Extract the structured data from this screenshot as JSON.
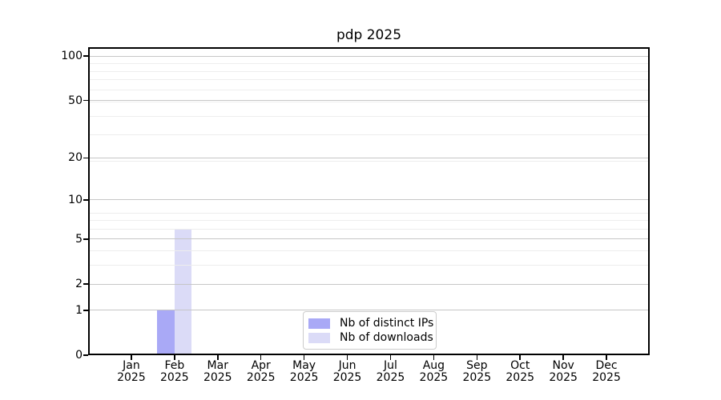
{
  "title": "pdp 2025",
  "chart_data": {
    "type": "bar",
    "title": "pdp 2025",
    "categories": [
      "Jan",
      "Feb",
      "Mar",
      "Apr",
      "May",
      "Jun",
      "Jul",
      "Aug",
      "Sep",
      "Oct",
      "Nov",
      "Dec"
    ],
    "category_year": "2025",
    "series": [
      {
        "name": "Nb of distinct IPs",
        "color": "#a9a9f6",
        "values": [
          0,
          1,
          0,
          0,
          0,
          0,
          0,
          0,
          0,
          0,
          0,
          0
        ]
      },
      {
        "name": "Nb of downloads",
        "color": "#dbdbf7",
        "values": [
          0,
          6,
          0,
          0,
          0,
          0,
          0,
          0,
          0,
          0,
          0,
          0
        ]
      }
    ],
    "y_scale": "log10(value+1)",
    "y_ticks": [
      0,
      1,
      2,
      5,
      10,
      20,
      50,
      100
    ],
    "y_minor_ticks": [
      1,
      2,
      3,
      4,
      5,
      6,
      7,
      8,
      19,
      29,
      39,
      49,
      59,
      69,
      79,
      89
    ],
    "ylim": [
      0,
      115
    ],
    "xlabel": "",
    "ylabel": "",
    "grid": true,
    "legend_position": "lower center"
  },
  "colors": {
    "background": "#ffffff",
    "axis": "#000000",
    "grid_major": "#c6c6c6",
    "grid_minor": "#ededed",
    "legend_border": "#cccccc",
    "text": "#000000"
  }
}
